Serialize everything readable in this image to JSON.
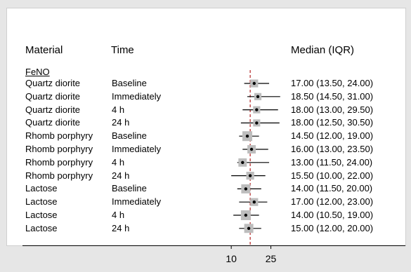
{
  "headers": {
    "material": "Material",
    "time": "Time",
    "median": "Median (IQR)"
  },
  "section_label": "FeNO",
  "colors": {
    "point": "#000000",
    "box": "#bdbdbd",
    "ci_line": "#000000",
    "reference_line": "#b22222",
    "panel_bg": "#ffffff",
    "page_bg": "#e6e6e6"
  },
  "chart_data": {
    "type": "forest",
    "scale": "log",
    "x_ticks": [
      10,
      25
    ],
    "x_tick_labels": [
      "10",
      "25"
    ],
    "xlim": [
      4.5,
      36
    ],
    "reference_line": 15.5,
    "reference_style": "dashed",
    "rows": [
      {
        "material": "Quartz diorite",
        "time": "Baseline",
        "median": 17.0,
        "q1": 13.5,
        "q3": 24.0,
        "weight": 0.6,
        "label": "17.00 (13.50, 24.00)"
      },
      {
        "material": "Quartz diorite",
        "time": "Immediately",
        "median": 18.5,
        "q1": 14.5,
        "q3": 31.0,
        "weight": 0.45,
        "label": "18.50 (14.50, 31.00)"
      },
      {
        "material": "Quartz diorite",
        "time": "4 h",
        "median": 18.0,
        "q1": 13.0,
        "q3": 29.5,
        "weight": 0.45,
        "label": "18.00 (13.00, 29.50)"
      },
      {
        "material": "Quartz diorite",
        "time": "24 h",
        "median": 18.0,
        "q1": 12.5,
        "q3": 30.5,
        "weight": 0.45,
        "label": "18.00 (12.50, 30.50)"
      },
      {
        "material": "Rhomb porphyry",
        "time": "Baseline",
        "median": 14.5,
        "q1": 12.0,
        "q3": 19.0,
        "weight": 1.0,
        "label": "14.50 (12.00, 19.00)"
      },
      {
        "material": "Rhomb porphyry",
        "time": "Immediately",
        "median": 16.0,
        "q1": 13.0,
        "q3": 23.5,
        "weight": 0.7,
        "label": "16.00 (13.00, 23.50)"
      },
      {
        "material": "Rhomb porphyry",
        "time": "4 h",
        "median": 13.0,
        "q1": 11.5,
        "q3": 24.0,
        "weight": 0.7,
        "label": "13.00 (11.50, 24.00)"
      },
      {
        "material": "Rhomb porphyry",
        "time": "24 h",
        "median": 15.5,
        "q1": 10.0,
        "q3": 22.0,
        "weight": 0.6,
        "label": "15.50 (10.00, 22.00)"
      },
      {
        "material": "Lactose",
        "time": "Baseline",
        "median": 14.0,
        "q1": 11.5,
        "q3": 20.0,
        "weight": 0.85,
        "label": "14.00 (11.50, 20.00)"
      },
      {
        "material": "Lactose",
        "time": "Immediately",
        "median": 17.0,
        "q1": 12.0,
        "q3": 23.0,
        "weight": 0.6,
        "label": "17.00 (12.00, 23.00)"
      },
      {
        "material": "Lactose",
        "time": "4 h",
        "median": 14.0,
        "q1": 10.5,
        "q3": 19.0,
        "weight": 1.0,
        "label": "14.00 (10.50, 19.00)"
      },
      {
        "material": "Lactose",
        "time": "24 h",
        "median": 15.0,
        "q1": 12.0,
        "q3": 20.0,
        "weight": 0.85,
        "label": "15.00 (12.00, 20.00)"
      }
    ]
  }
}
